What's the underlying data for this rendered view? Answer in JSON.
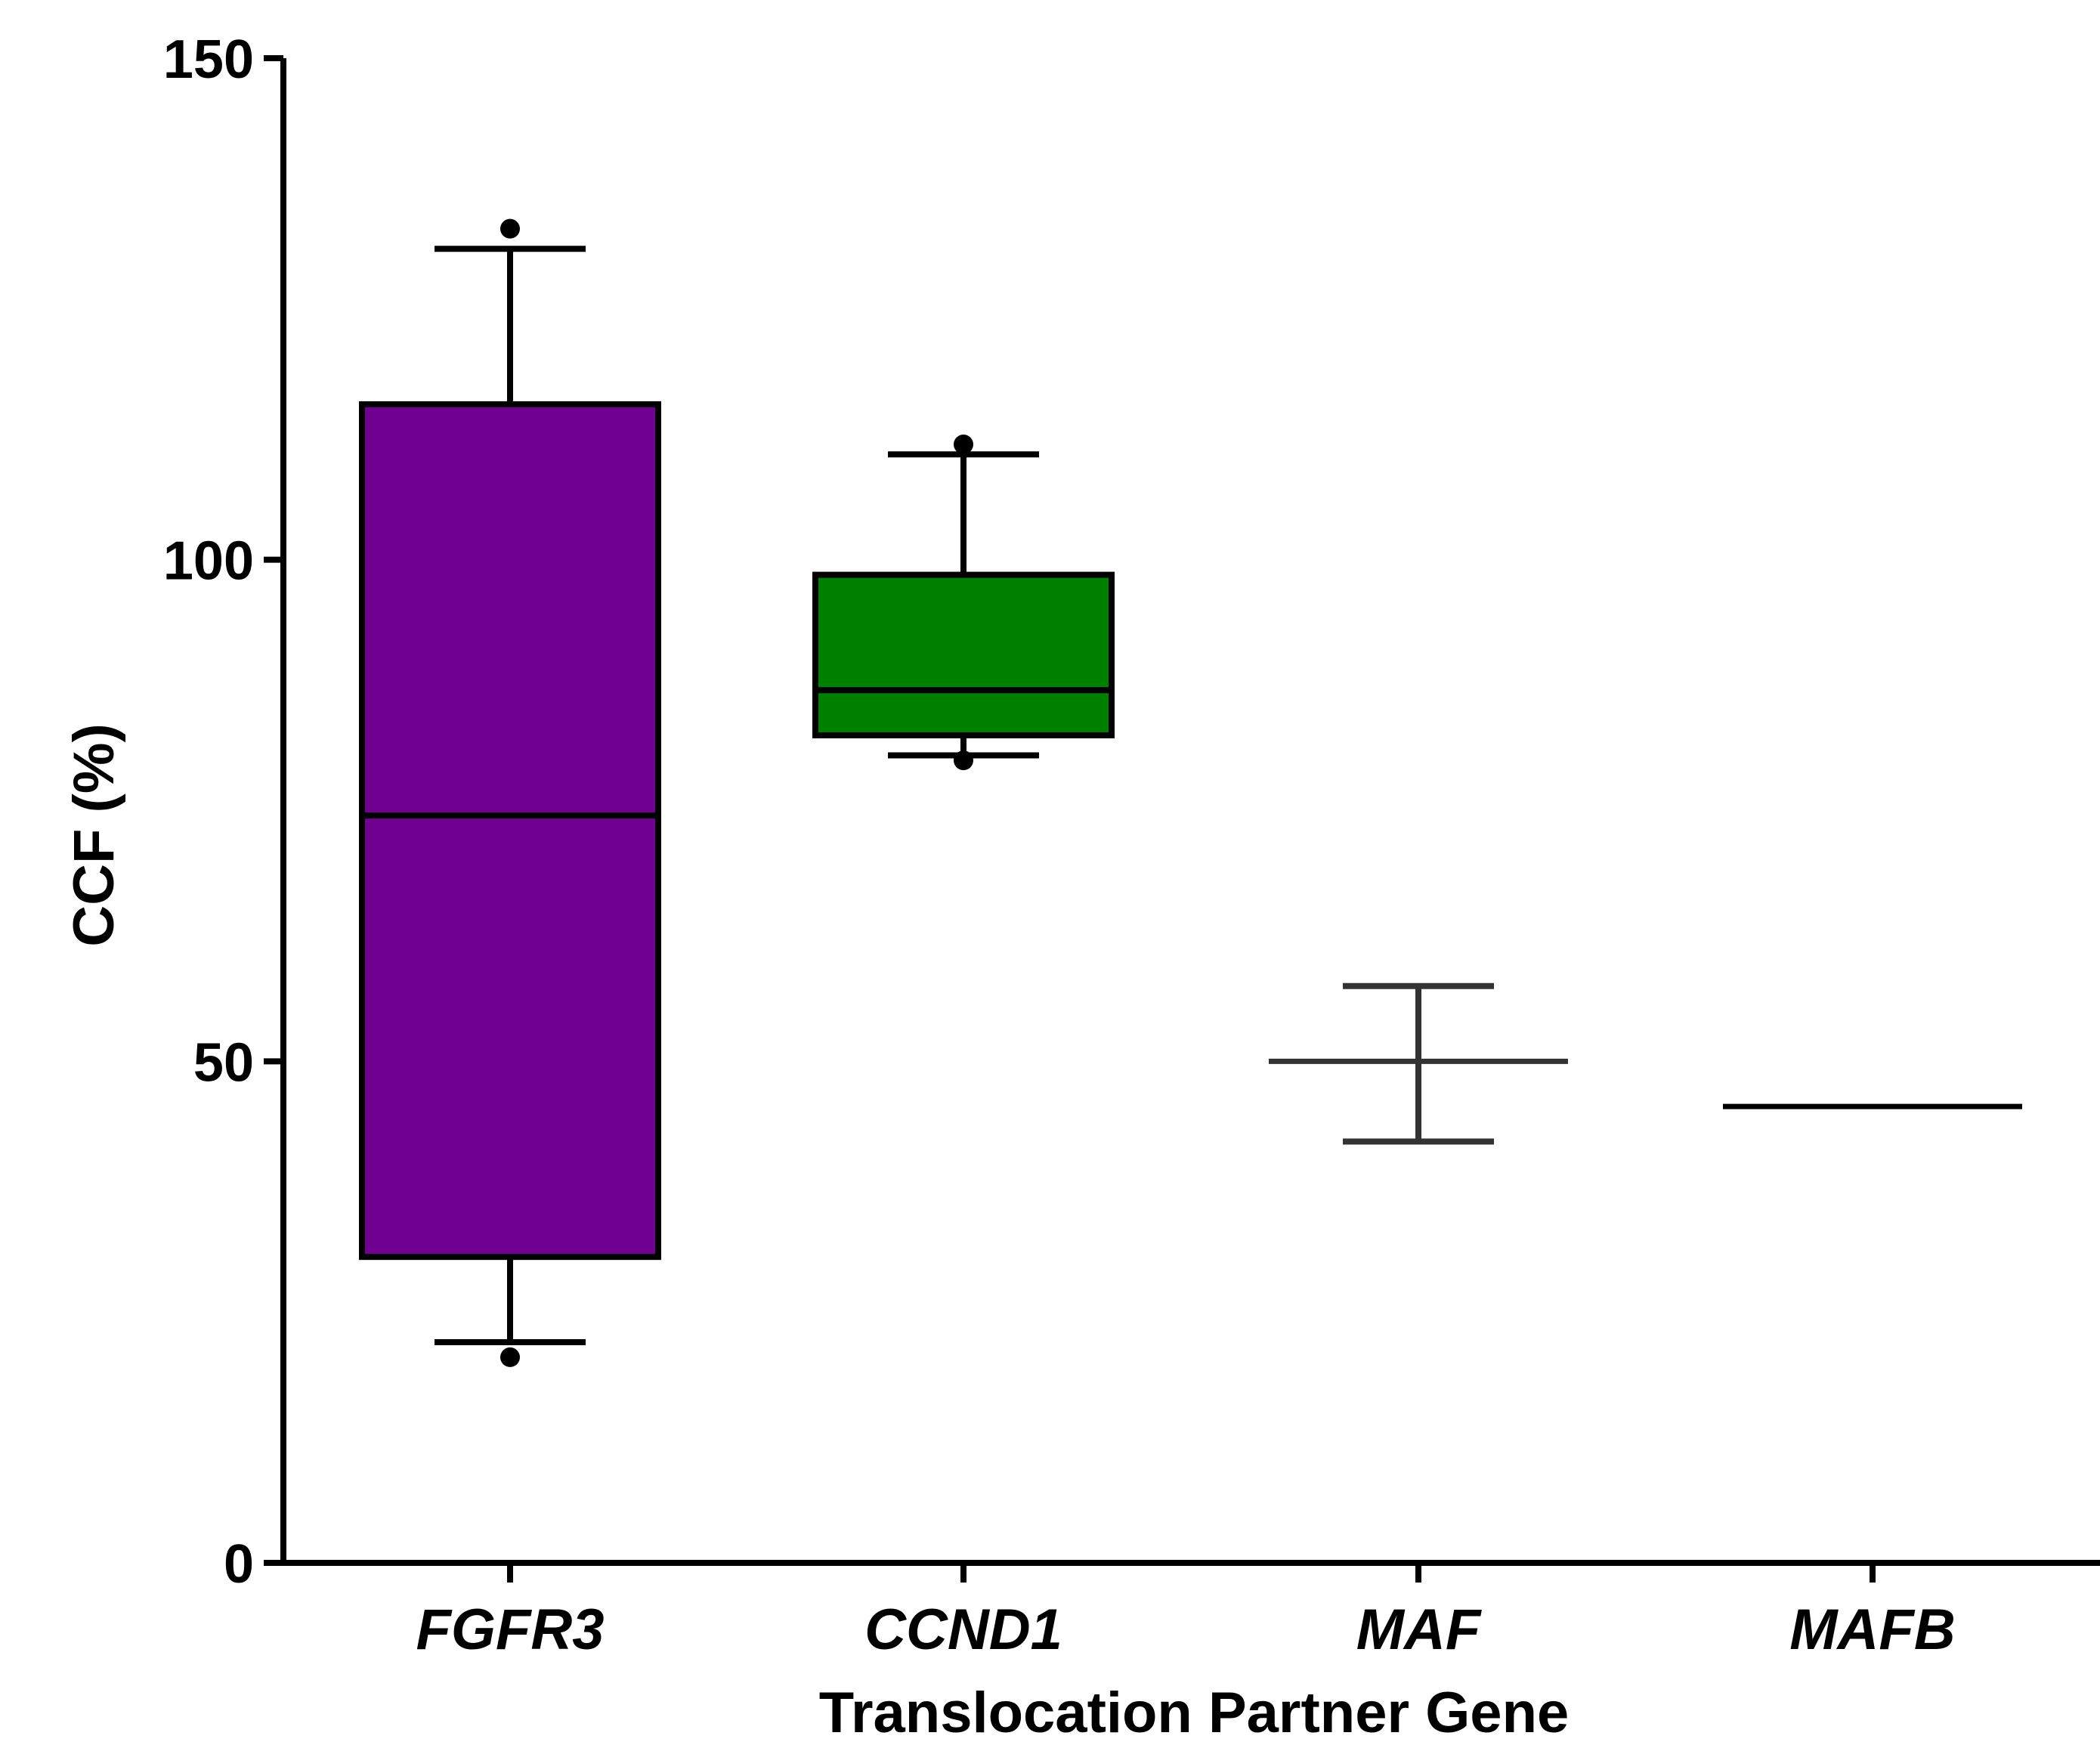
{
  "chart_data": {
    "type": "box",
    "xlabel": "Translocation Partner Gene",
    "ylabel": "CCF (%)",
    "ylim": [
      0,
      150
    ],
    "yticks": [
      0,
      50,
      100,
      150
    ],
    "categories": [
      "FGFR3",
      "CCND1",
      "MAF",
      "MAFB"
    ],
    "boxes": [
      {
        "category": "FGFR3",
        "color": "#700090",
        "q1": 30.5,
        "median": 74.5,
        "q3": 115.5,
        "whisker_low": 22,
        "whisker_high": 131,
        "outliers": [
          20.5,
          133
        ]
      },
      {
        "category": "CCND1",
        "color": "#008000",
        "q1": 82.5,
        "median": 87,
        "q3": 98.5,
        "whisker_low": 80.5,
        "whisker_high": 110.5,
        "outliers": [
          80,
          111.5
        ]
      },
      {
        "category": "MAF",
        "color": "#333333",
        "q1": null,
        "median": 50,
        "q3": null,
        "whisker_low": 42,
        "whisker_high": 57.5,
        "outliers": []
      },
      {
        "category": "MAFB",
        "color": "#000000",
        "q1": null,
        "median": 45.5,
        "q3": null,
        "whisker_low": null,
        "whisker_high": null,
        "outliers": []
      }
    ],
    "grid": false,
    "legend": "none"
  }
}
